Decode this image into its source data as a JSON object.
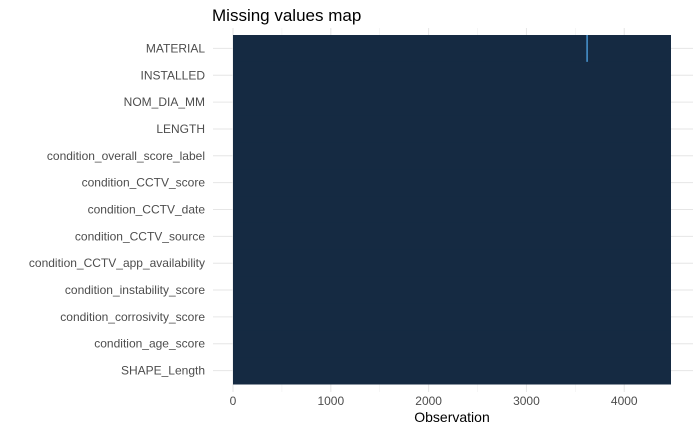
{
  "chart_data": {
    "type": "heatmap",
    "title": "Missing values map",
    "xlabel": "Observation",
    "ylabel": "",
    "xlim": [
      0,
      4478
    ],
    "x_ticks": [
      0,
      1000,
      2000,
      3000,
      4000
    ],
    "variables": [
      "MATERIAL",
      "INSTALLED",
      "NOM_DIA_MM",
      "LENGTH",
      "condition_overall_score_label",
      "condition_CCTV_score",
      "condition_CCTV_date",
      "condition_CCTV_source",
      "condition_CCTV_app_availability",
      "condition_instability_score",
      "condition_corrosivity_score",
      "condition_age_score",
      "SHAPE_Length"
    ],
    "present_color": "#152a42",
    "missing_color": "#56b1f7",
    "missing": [
      {
        "variable": "MATERIAL",
        "observation": 3620
      }
    ],
    "grid": true,
    "legend": "none"
  }
}
